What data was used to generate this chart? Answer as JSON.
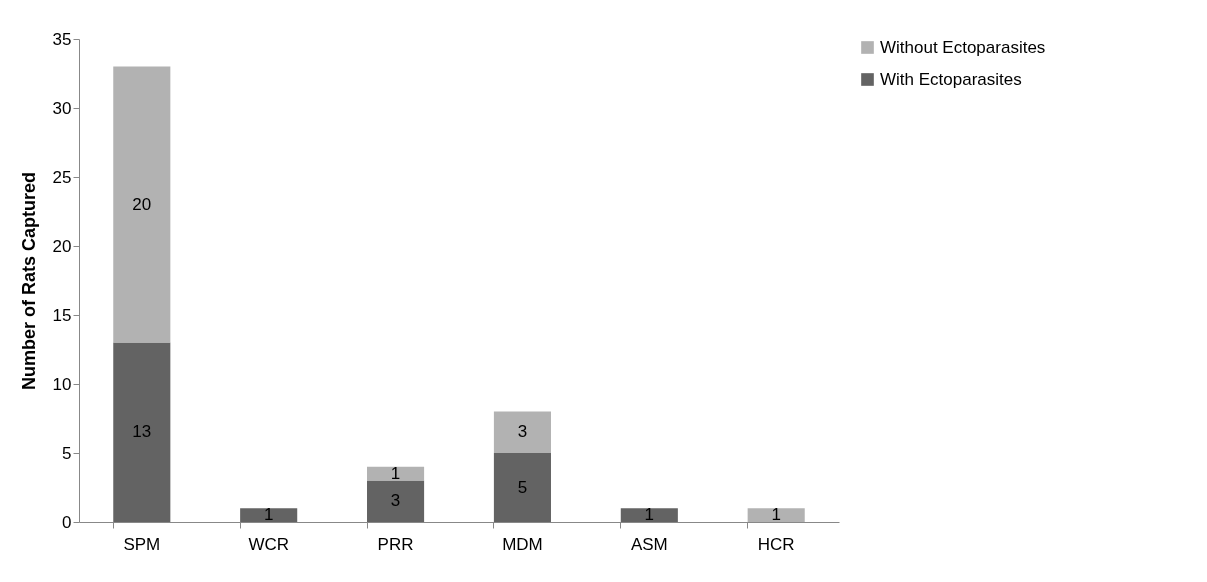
{
  "chart_data": {
    "type": "bar",
    "stacked": true,
    "ylabel": "Number of Rats Captured",
    "categories": [
      "SPM",
      "WCR",
      "PRR",
      "MDM",
      "ASM",
      "HCR"
    ],
    "series": [
      {
        "name": "With Ectoparasites",
        "color": "#636363",
        "values": [
          13,
          1,
          3,
          5,
          1,
          0
        ],
        "value_labels": [
          "13",
          "1",
          "3",
          "5",
          "1",
          null
        ]
      },
      {
        "name": "Without Ectoparasites",
        "color": "#b2b2b2",
        "values": [
          20,
          0,
          1,
          3,
          0,
          1
        ],
        "value_labels": [
          "20",
          null,
          "1",
          "3",
          null,
          "1"
        ]
      }
    ],
    "ylim": [
      0,
      35
    ],
    "yticks": [
      0,
      5,
      10,
      15,
      20,
      25,
      30,
      35
    ],
    "grid": false,
    "legend": "right"
  }
}
